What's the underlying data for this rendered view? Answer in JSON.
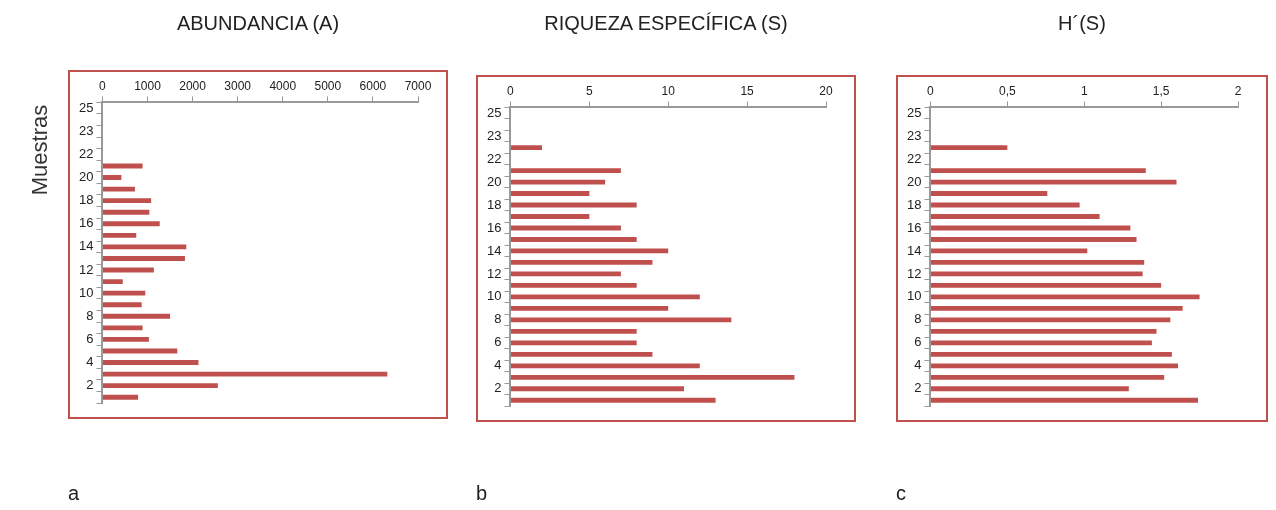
{
  "chart_data": [
    {
      "type": "bar",
      "orientation": "horizontal",
      "title": "ABUNDANCIA (A)",
      "ylabel": "Muestras",
      "color": "#c0504d",
      "annotations": [
        "a"
      ],
      "categories": [
        "25",
        null,
        "23",
        null,
        "22",
        null,
        "20",
        null,
        "18",
        null,
        "16",
        null,
        "14",
        null,
        "12",
        null,
        "10",
        null,
        "8",
        null,
        "6",
        null,
        "4",
        null,
        "2",
        null
      ],
      "values": [
        null,
        null,
        null,
        null,
        null,
        890,
        420,
        720,
        1080,
        1040,
        1270,
        750,
        1860,
        1830,
        1140,
        450,
        950,
        870,
        1500,
        890,
        1030,
        1660,
        2130,
        6320,
        2560,
        790
      ],
      "xlim": [
        0,
        7000
      ],
      "xticks": [
        0,
        1000,
        2000,
        3000,
        4000,
        5000,
        6000,
        7000
      ]
    },
    {
      "type": "bar",
      "orientation": "horizontal",
      "title": "RIQUEZA ESPECÍFICA (S)",
      "color": "#c0504d",
      "annotations": [
        "b"
      ],
      "categories": [
        "25",
        null,
        "23",
        null,
        "22",
        null,
        "20",
        null,
        "18",
        null,
        "16",
        null,
        "14",
        null,
        "12",
        null,
        "10",
        null,
        "8",
        null,
        "6",
        null,
        "4",
        null,
        "2",
        null
      ],
      "values": [
        null,
        null,
        null,
        2,
        null,
        7,
        6,
        5,
        8,
        5,
        7,
        8,
        10,
        9,
        7,
        8,
        12,
        10,
        14,
        8,
        8,
        9,
        12,
        18,
        11,
        13
      ],
      "xlim": [
        0,
        20
      ],
      "xticks": [
        0,
        5,
        10,
        15,
        20
      ]
    },
    {
      "type": "bar",
      "orientation": "horizontal",
      "title": "H´(S)",
      "color": "#c0504d",
      "annotations": [
        "c"
      ],
      "categories": [
        "25",
        null,
        "23",
        null,
        "22",
        null,
        "20",
        null,
        "18",
        null,
        "16",
        null,
        "14",
        null,
        "12",
        null,
        "10",
        null,
        "8",
        null,
        "6",
        null,
        "4",
        null,
        "2",
        null
      ],
      "values": [
        null,
        null,
        null,
        0.5,
        null,
        1.4,
        1.6,
        0.76,
        0.97,
        1.1,
        1.3,
        1.34,
        1.02,
        1.39,
        1.38,
        1.5,
        1.75,
        1.64,
        1.56,
        1.47,
        1.44,
        1.57,
        1.61,
        1.52,
        1.29,
        1.74
      ],
      "xlim": [
        0,
        2
      ],
      "xticks": [
        0,
        {
          "value": 0.5,
          "label": "0,5"
        },
        1,
        {
          "value": 1.5,
          "label": "1,5"
        },
        2
      ]
    }
  ]
}
